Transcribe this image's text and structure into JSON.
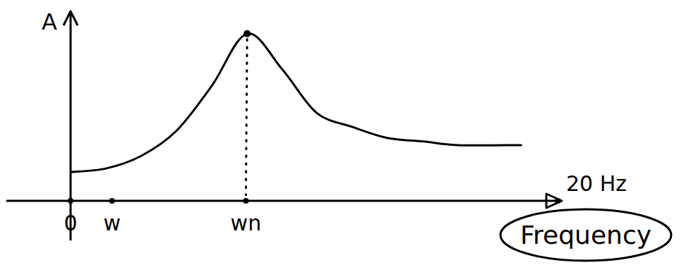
{
  "chart_data": {
    "type": "line",
    "y_label": "A",
    "x_label": "Frequency",
    "x": [
      0,
      1.45,
      2.9,
      4.35,
      5.8,
      7.25,
      8.7,
      10.1,
      11.6,
      13.0,
      14.5,
      15.9,
      18.5
    ],
    "values": [
      1.6,
      1.8,
      2.5,
      3.9,
      6.4,
      9.3,
      7.3,
      4.9,
      4.1,
      3.5,
      3.3,
      3.1,
      3.1
    ],
    "color": "#000000",
    "xlim": [
      0,
      20
    ],
    "ylim": [
      0,
      10
    ],
    "xticks": [
      0,
      {
        "value": 1.7,
        "label": "w"
      },
      {
        "value": 7.2,
        "label": "wn"
      },
      {
        "value": 20,
        "label": "20 Hz"
      }
    ],
    "yticks": [],
    "grid": false,
    "tick_labels": "x"
  }
}
